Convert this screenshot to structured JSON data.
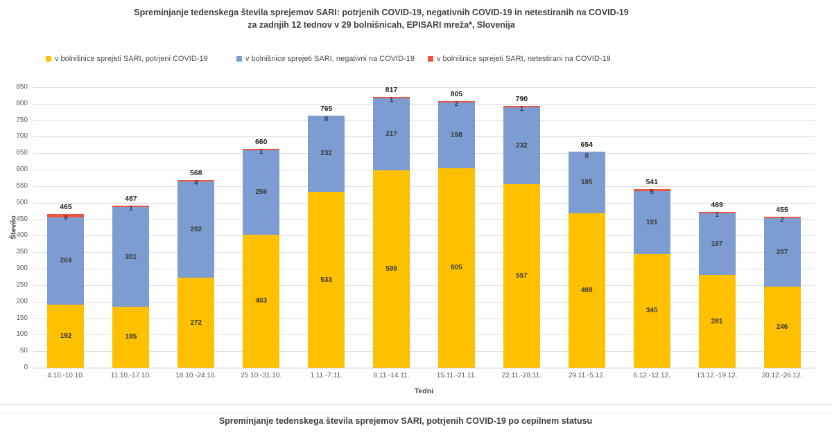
{
  "title": {
    "line1": "Spreminjanje tedenskega števila sprejemov SARI: potrjenih COVID-19, negativnih COVID-19 in netestiranih na COVID-19",
    "line2": "za zadnjih 12 tednov v 29 bolnišnicah, EPISARI mreža*, Slovenija"
  },
  "legend": [
    {
      "label": "v bolnišnice sprejeti SARI, potrjeni COVID-19",
      "color": "#FFC000"
    },
    {
      "label": "v bolnišnice sprejeti SARI, negativni na COVID-19",
      "color": "#7D9CD2"
    },
    {
      "label": "v bolnišnice sprejeti SARI, netestirani na COVID-19",
      "color": "#EE5540"
    }
  ],
  "chart_data": {
    "type": "bar",
    "stacked": true,
    "title": "Spreminjanje tedenskega števila sprejemov SARI: potrjenih COVID-19, negativnih COVID-19 in netestiranih na COVID-19 za zadnjih 12 tednov v 29 bolnišnicah, EPISARI mreža*, Slovenija",
    "xlabel": "Tedni",
    "ylabel": "Število",
    "ylim": [
      0,
      850
    ],
    "ytick_step": 50,
    "grid": true,
    "legend_position": "top",
    "categories": [
      "4.10.-10.10.",
      "11.10.-17.10.",
      "18.10.-24.10.",
      "25.10.-31.10.",
      "1.11.-7.11.",
      "8.11.-14.11.",
      "15.11.-21.11.",
      "22.11.-28.11.",
      "29.11.-5.12.",
      "6.12.-12.12.",
      "13.12.-19.12.",
      "20.12.-26.12."
    ],
    "series": [
      {
        "name": "v bolnišnice sprejeti SARI, potrjeni COVID-19",
        "color": "#FFC000",
        "values": [
          192,
          185,
          272,
          403,
          533,
          599,
          605,
          557,
          469,
          345,
          281,
          246
        ]
      },
      {
        "name": "v bolnišnice sprejeti SARI, negativni na COVID-19",
        "color": "#7D9CD2",
        "values": [
          264,
          301,
          292,
          256,
          232,
          217,
          198,
          232,
          185,
          191,
          187,
          207
        ]
      },
      {
        "name": "v bolnišnice sprejeti SARI, netestirani na COVID-19",
        "color": "#EE5540",
        "values": [
          9,
          1,
          4,
          1,
          0,
          1,
          2,
          1,
          0,
          5,
          1,
          2
        ]
      }
    ],
    "totals": [
      465,
      487,
      568,
      660,
      765,
      817,
      805,
      790,
      654,
      541,
      469,
      455
    ]
  },
  "footer": {
    "title": "Spreminjanje tedenskega števila sprejemov SARI, potrjenih COVID-19 po cepilnem statusu"
  }
}
